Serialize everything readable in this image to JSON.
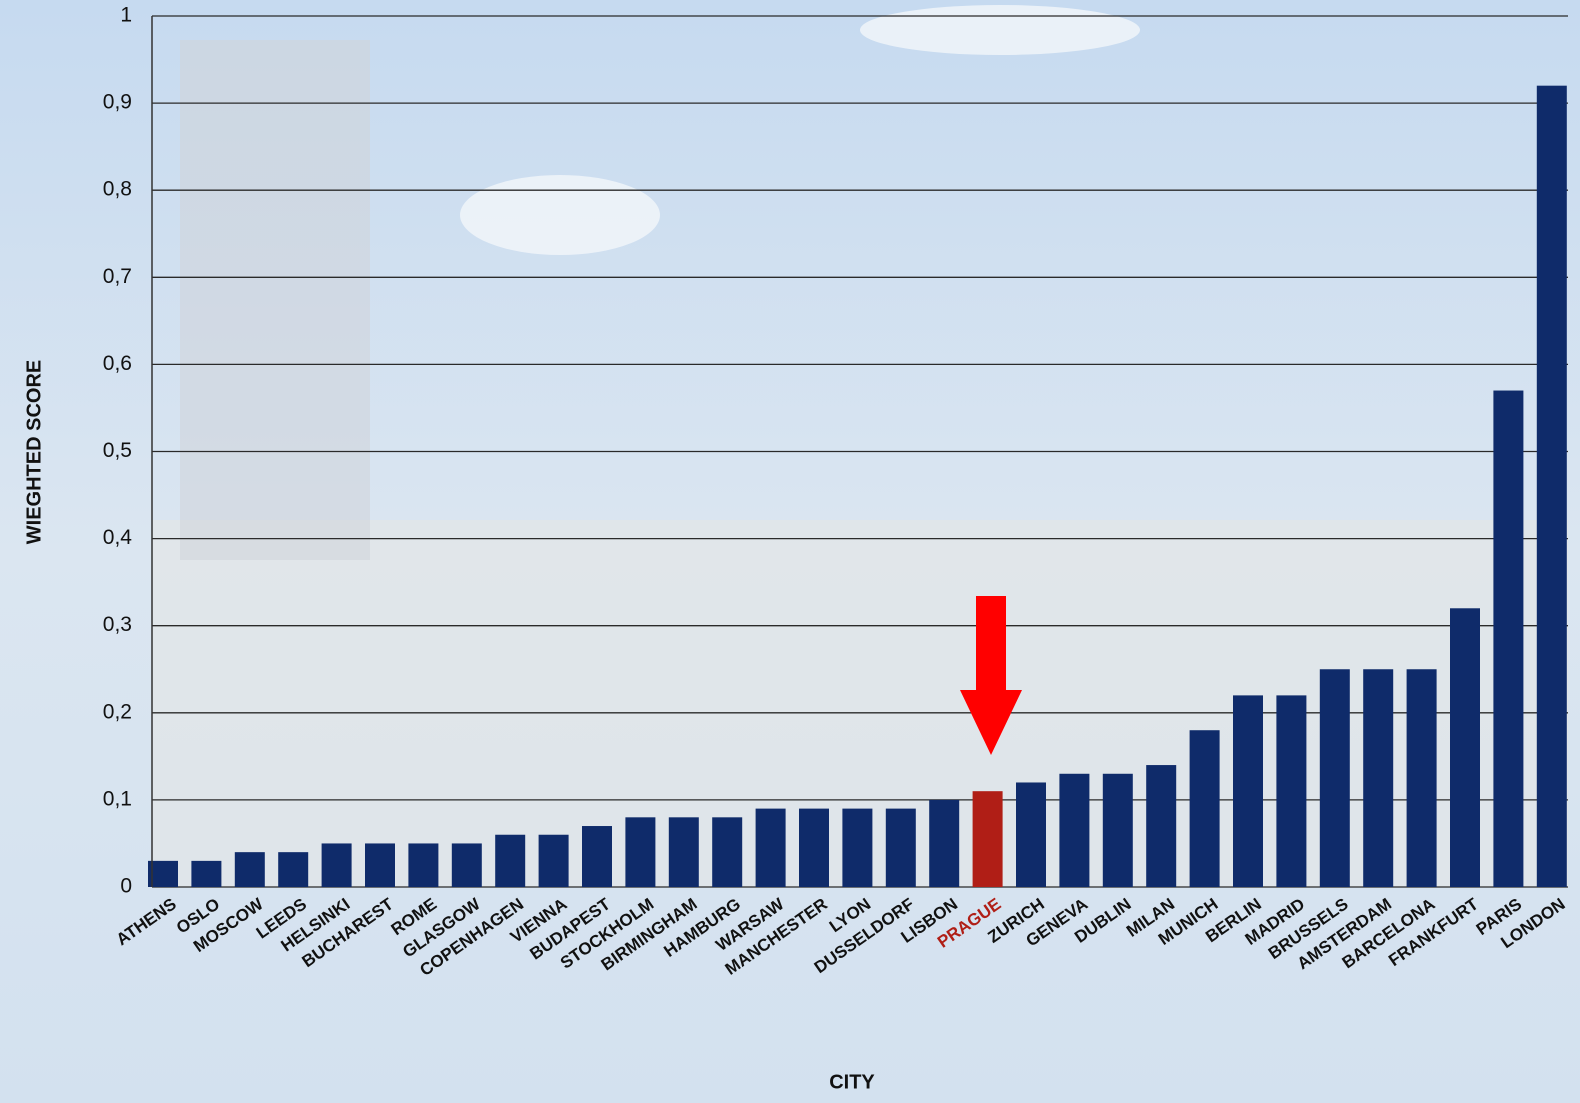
{
  "chart_data": {
    "type": "bar",
    "xlabel": "CITY",
    "ylabel": "WIEGHTED SCORE",
    "categories": [
      "ATHENS",
      "OSLO",
      "MOSCOW",
      "LEEDS",
      "HELSINKI",
      "BUCHAREST",
      "ROME",
      "GLASGOW",
      "COPENHAGEN",
      "VIENNA",
      "BUDAPEST",
      "STOCKHOLM",
      "BIRMINGHAM",
      "HAMBURG",
      "WARSAW",
      "MANCHESTER",
      "LYON",
      "DUSSELDORF",
      "LISBON",
      "PRAGUE",
      "ZURICH",
      "GENEVA",
      "DUBLIN",
      "MILAN",
      "MUNICH",
      "BERLIN",
      "MADRID",
      "BRUSSELS",
      "AMSTERDAM",
      "BARCELONA",
      "FRANKFURT",
      "PARIS",
      "LONDON"
    ],
    "values": [
      0.03,
      0.03,
      0.04,
      0.04,
      0.05,
      0.05,
      0.05,
      0.05,
      0.06,
      0.06,
      0.07,
      0.08,
      0.08,
      0.08,
      0.09,
      0.09,
      0.09,
      0.09,
      0.1,
      0.11,
      0.12,
      0.13,
      0.13,
      0.14,
      0.18,
      0.22,
      0.22,
      0.25,
      0.25,
      0.25,
      0.32,
      0.57,
      0.92
    ],
    "color": "#0f2b6a",
    "colors": [
      "#0f2b6a",
      "#0f2b6a",
      "#0f2b6a",
      "#0f2b6a",
      "#0f2b6a",
      "#0f2b6a",
      "#0f2b6a",
      "#0f2b6a",
      "#0f2b6a",
      "#0f2b6a",
      "#0f2b6a",
      "#0f2b6a",
      "#0f2b6a",
      "#0f2b6a",
      "#0f2b6a",
      "#0f2b6a",
      "#0f2b6a",
      "#0f2b6a",
      "#0f2b6a",
      "#b01e16",
      "#0f2b6a",
      "#0f2b6a",
      "#0f2b6a",
      "#0f2b6a",
      "#0f2b6a",
      "#0f2b6a",
      "#0f2b6a",
      "#0f2b6a",
      "#0f2b6a",
      "#0f2b6a",
      "#0f2b6a",
      "#0f2b6a",
      "#0f2b6a"
    ],
    "ylim": [
      0,
      1
    ],
    "yticks": [
      0,
      {
        "value": 0.1,
        "label": "0,1"
      },
      {
        "value": 0.2,
        "label": "0,2"
      },
      {
        "value": 0.3,
        "label": "0,3"
      },
      {
        "value": 0.4,
        "label": "0,4"
      },
      {
        "value": 0.5,
        "label": "0,5"
      },
      {
        "value": 0.6,
        "label": "0,6"
      },
      {
        "value": 0.7,
        "label": "0,7"
      },
      {
        "value": 0.8,
        "label": "0,8"
      },
      {
        "value": 0.9,
        "label": "0,9"
      },
      1
    ],
    "grid": true
  }
}
